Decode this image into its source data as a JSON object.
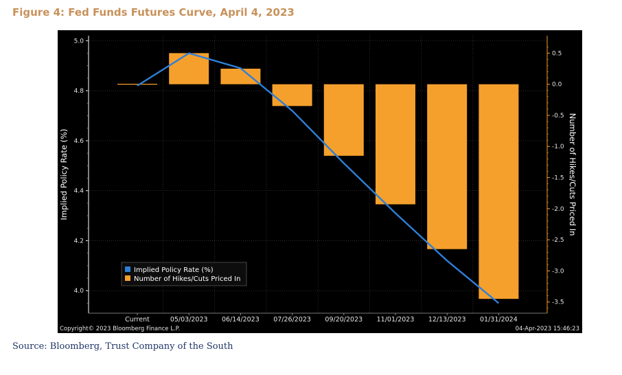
{
  "figure_title": "Figure 4: Fed Funds Futures Curve, April 4, 2023",
  "source": "Source: Bloomberg, Trust Company of the South",
  "chart_data": {
    "type": "bar",
    "categories": [
      "Current",
      "05/03/2023",
      "06/14/2023",
      "07/26/2023",
      "09/20/2023",
      "11/01/2023",
      "12/13/2023",
      "01/31/2024"
    ],
    "series": [
      {
        "name": "Implied Policy Rate (%)",
        "type": "line",
        "axis": "left",
        "color": "#2f7fd8",
        "values": [
          4.82,
          4.95,
          4.89,
          4.72,
          4.51,
          4.31,
          4.12,
          3.95
        ]
      },
      {
        "name": "Number of Hikes/Cuts Priced In",
        "type": "bar",
        "axis": "right",
        "color": "#f5a02c",
        "values": [
          0.0,
          0.5,
          0.25,
          -0.35,
          -1.15,
          -1.93,
          -2.65,
          -3.45
        ]
      }
    ],
    "ylabel": "Implied Policy Rate (%)",
    "ylabel_right": "Number of Hikes/Cuts Priced In",
    "ylim": [
      3.91,
      5.02
    ],
    "ylim_right": [
      -3.68,
      0.78
    ],
    "yticks": [
      "5.0",
      "4.8",
      "4.6",
      "4.4",
      "4.2",
      "4.0"
    ],
    "yticks_right": [
      "0.5",
      "0.0",
      "-0.5",
      "-1.0",
      "-1.5",
      "-2.0",
      "-2.5",
      "-3.0",
      "-3.5"
    ],
    "legend_position": "bottom-left",
    "copyright": "Copyright© 2023 Bloomberg Finance L.P.",
    "timestamp": "04-Apr-2023 15:46:23"
  }
}
